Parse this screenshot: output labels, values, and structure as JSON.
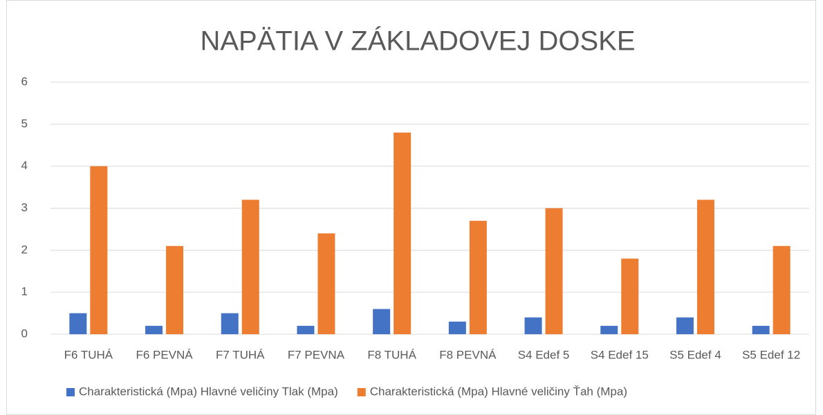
{
  "chart_data": {
    "type": "bar",
    "title": "NAPÄTIA V ZÁKLADOVEJ DOSKE",
    "categories": [
      "F6 TUHÁ",
      "F6 PEVNÁ",
      "F7 TUHÁ",
      "F7 PEVNA",
      "F8 TUHÁ",
      "F8 PEVNÁ",
      "S4 Edef 5",
      "S4 Edef 15",
      "S5 Edef 4",
      "S5 Edef 12"
    ],
    "series": [
      {
        "name": "Charakteristická (Mpa) Hlavné veličiny Tlak (Mpa)",
        "color": "#4472c4",
        "values": [
          0.5,
          0.2,
          0.5,
          0.2,
          0.6,
          0.3,
          0.4,
          0.2,
          0.4,
          0.2
        ]
      },
      {
        "name": "Charakteristická (Mpa) Hlavné veličiny Ťah (Mpa)",
        "color": "#ed7d31",
        "values": [
          4,
          2.1,
          3.2,
          2.4,
          4.8,
          2.7,
          3,
          1.8,
          3.2,
          2.1
        ]
      }
    ],
    "ylim": [
      0,
      6
    ],
    "yticks": [
      0,
      1,
      2,
      3,
      4,
      5,
      6
    ],
    "grid": true,
    "legend": "bottom"
  }
}
